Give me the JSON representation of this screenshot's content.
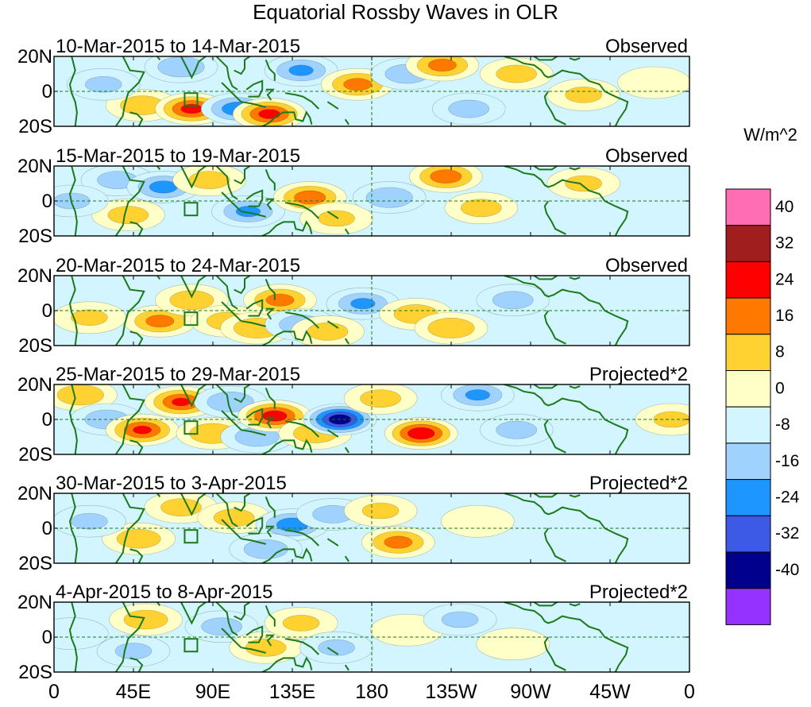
{
  "chart_data": {
    "type": "heatmap",
    "title": "Equatorial Rossby Waves in OLR",
    "variable": "OLR anomaly",
    "units": "W/m^2",
    "x_axis": {
      "range": [
        "0",
        "0 (360)"
      ],
      "tick_labels": [
        "0",
        "45E",
        "90E",
        "135E",
        "180",
        "135W",
        "90W",
        "45W",
        "0"
      ],
      "tick_values_deg_east": [
        0,
        45,
        90,
        135,
        180,
        225,
        270,
        315,
        360
      ]
    },
    "y_axis": {
      "tick_labels": [
        "20N",
        "0",
        "20S"
      ],
      "tick_values_deg": [
        20,
        0,
        -20
      ]
    },
    "colorbar": {
      "labels": [
        "40",
        "32",
        "24",
        "16",
        "8",
        "0",
        "-8",
        "-16",
        "-24",
        "-32",
        "-40"
      ],
      "levels": [
        40,
        32,
        24,
        16,
        8,
        0,
        -8,
        -16,
        -24,
        -32,
        -40
      ],
      "colors": [
        "#ff6eb4",
        "#a01e1e",
        "#ff0000",
        "#ff7800",
        "#ffd232",
        "#ffffc8",
        "#d2f5ff",
        "#a0d2ff",
        "#1e96ff",
        "#3c5ae6",
        "#00008c",
        "#9632ff"
      ]
    },
    "panels": [
      {
        "date_range": "10-Mar-2015 to 14-Mar-2015",
        "label": "Observed",
        "blobs": [
          {
            "lon": 50,
            "lat": -8,
            "value": 12
          },
          {
            "lon": 78,
            "lat": -10,
            "value": 26
          },
          {
            "lon": 72,
            "lat": 14,
            "value": -14
          },
          {
            "lon": 104,
            "lat": -10,
            "value": -20
          },
          {
            "lon": 122,
            "lat": -13,
            "value": 26
          },
          {
            "lon": 140,
            "lat": 12,
            "value": -16
          },
          {
            "lon": 172,
            "lat": 4,
            "value": 18
          },
          {
            "lon": 200,
            "lat": 10,
            "value": -12
          },
          {
            "lon": 220,
            "lat": 15,
            "value": 18
          },
          {
            "lon": 262,
            "lat": 10,
            "value": 10
          },
          {
            "lon": 300,
            "lat": -2,
            "value": 8
          },
          {
            "lon": 235,
            "lat": -10,
            "value": -10
          },
          {
            "lon": 28,
            "lat": 4,
            "value": -8
          },
          {
            "lon": 340,
            "lat": 5,
            "value": 6
          }
        ]
      },
      {
        "date_range": "15-Mar-2015 to 19-Mar-2015",
        "label": "Observed",
        "blobs": [
          {
            "lon": 36,
            "lat": 12,
            "value": -10
          },
          {
            "lon": 62,
            "lat": 8,
            "value": -18
          },
          {
            "lon": 88,
            "lat": 12,
            "value": 10
          },
          {
            "lon": 110,
            "lat": -6,
            "value": -16
          },
          {
            "lon": 145,
            "lat": 2,
            "value": 20
          },
          {
            "lon": 160,
            "lat": -10,
            "value": 8
          },
          {
            "lon": 190,
            "lat": 2,
            "value": -14
          },
          {
            "lon": 222,
            "lat": 14,
            "value": 20
          },
          {
            "lon": 242,
            "lat": -4,
            "value": 10
          },
          {
            "lon": 300,
            "lat": 10,
            "value": 8
          },
          {
            "lon": 42,
            "lat": -8,
            "value": 10
          },
          {
            "lon": 10,
            "lat": 0,
            "value": -8
          }
        ]
      },
      {
        "date_range": "20-Mar-2015 to 24-Mar-2015",
        "label": "Observed",
        "blobs": [
          {
            "lon": 60,
            "lat": -6,
            "value": 18
          },
          {
            "lon": 78,
            "lat": 6,
            "value": 12
          },
          {
            "lon": 98,
            "lat": -6,
            "value": 10
          },
          {
            "lon": 115,
            "lat": -10,
            "value": 14
          },
          {
            "lon": 128,
            "lat": 6,
            "value": 18
          },
          {
            "lon": 140,
            "lat": -8,
            "value": -12
          },
          {
            "lon": 155,
            "lat": -12,
            "value": 10
          },
          {
            "lon": 175,
            "lat": 4,
            "value": -16
          },
          {
            "lon": 205,
            "lat": -2,
            "value": 12
          },
          {
            "lon": 225,
            "lat": -10,
            "value": 14
          },
          {
            "lon": 260,
            "lat": 6,
            "value": -10
          },
          {
            "lon": 20,
            "lat": -4,
            "value": 8
          }
        ]
      },
      {
        "date_range": "25-Mar-2015 to 29-Mar-2015",
        "label": "Projected*2",
        "blobs": [
          {
            "lon": 15,
            "lat": 14,
            "value": 14
          },
          {
            "lon": 30,
            "lat": 0,
            "value": -12
          },
          {
            "lon": 50,
            "lat": -6,
            "value": 24
          },
          {
            "lon": 72,
            "lat": 10,
            "value": 24
          },
          {
            "lon": 90,
            "lat": -8,
            "value": 14
          },
          {
            "lon": 100,
            "lat": 10,
            "value": -14
          },
          {
            "lon": 115,
            "lat": -10,
            "value": -12
          },
          {
            "lon": 125,
            "lat": 2,
            "value": 28
          },
          {
            "lon": 148,
            "lat": -8,
            "value": 12
          },
          {
            "lon": 162,
            "lat": 0,
            "value": -38
          },
          {
            "lon": 185,
            "lat": 12,
            "value": 10
          },
          {
            "lon": 208,
            "lat": -8,
            "value": 30
          },
          {
            "lon": 240,
            "lat": 14,
            "value": -16
          },
          {
            "lon": 262,
            "lat": -6,
            "value": -10
          },
          {
            "lon": 350,
            "lat": 0,
            "value": 8
          }
        ]
      },
      {
        "date_range": "30-Mar-2015 to 3-Apr-2015",
        "label": "Projected*2",
        "blobs": [
          {
            "lon": 48,
            "lat": -6,
            "value": 12
          },
          {
            "lon": 72,
            "lat": 12,
            "value": 10
          },
          {
            "lon": 102,
            "lat": 6,
            "value": 10
          },
          {
            "lon": 135,
            "lat": 2,
            "value": -20
          },
          {
            "lon": 158,
            "lat": 8,
            "value": -10
          },
          {
            "lon": 195,
            "lat": -8,
            "value": 18
          },
          {
            "lon": 185,
            "lat": 10,
            "value": 8
          },
          {
            "lon": 240,
            "lat": 4,
            "value": 6
          },
          {
            "lon": 120,
            "lat": -12,
            "value": -12
          },
          {
            "lon": 20,
            "lat": 4,
            "value": -8
          }
        ]
      },
      {
        "date_range": "4-Apr-2015 to 8-Apr-2015",
        "label": "Projected*2",
        "blobs": [
          {
            "lon": 52,
            "lat": 10,
            "value": 12
          },
          {
            "lon": 45,
            "lat": -8,
            "value": -8
          },
          {
            "lon": 95,
            "lat": 6,
            "value": -10
          },
          {
            "lon": 120,
            "lat": -6,
            "value": 10
          },
          {
            "lon": 140,
            "lat": 8,
            "value": 8
          },
          {
            "lon": 160,
            "lat": -6,
            "value": -8
          },
          {
            "lon": 200,
            "lat": 4,
            "value": 6
          },
          {
            "lon": 230,
            "lat": 10,
            "value": -8
          },
          {
            "lon": 260,
            "lat": -4,
            "value": 6
          },
          {
            "lon": 10,
            "lat": 2,
            "value": -6
          }
        ]
      }
    ]
  }
}
